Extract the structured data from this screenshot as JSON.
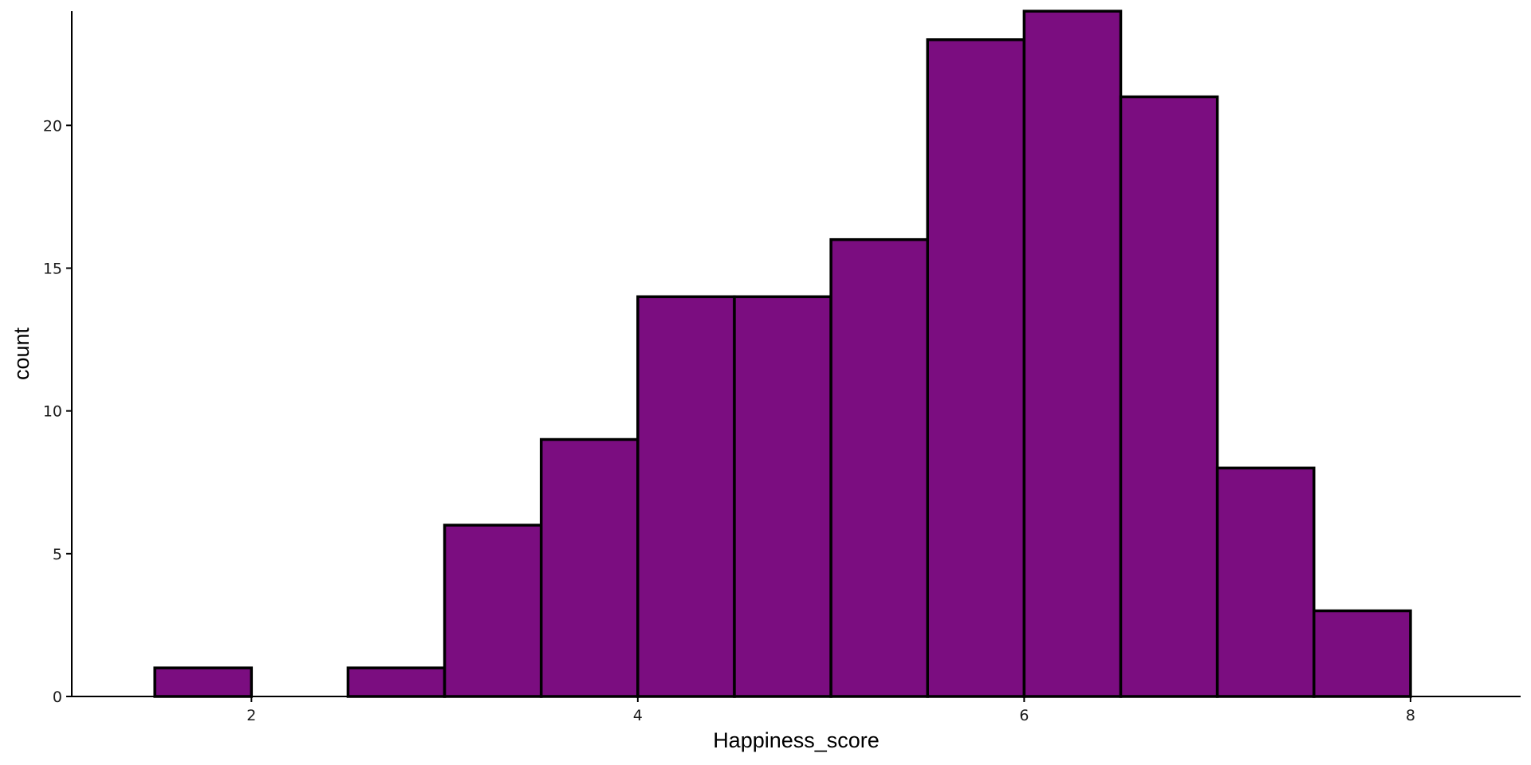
{
  "chart_data": {
    "type": "bar",
    "subtype": "histogram",
    "xlabel": "Happiness_score",
    "ylabel": "count",
    "bin_width": 0.5,
    "bins": [
      {
        "x0": 1.5,
        "x1": 2.0,
        "count": 1
      },
      {
        "x0": 2.0,
        "x1": 2.5,
        "count": 0
      },
      {
        "x0": 2.5,
        "x1": 3.0,
        "count": 1
      },
      {
        "x0": 3.0,
        "x1": 3.5,
        "count": 6
      },
      {
        "x0": 3.5,
        "x1": 4.0,
        "count": 9
      },
      {
        "x0": 4.0,
        "x1": 4.5,
        "count": 14
      },
      {
        "x0": 4.5,
        "x1": 5.0,
        "count": 14
      },
      {
        "x0": 5.0,
        "x1": 5.5,
        "count": 16
      },
      {
        "x0": 5.5,
        "x1": 6.0,
        "count": 23
      },
      {
        "x0": 6.0,
        "x1": 6.5,
        "count": 24
      },
      {
        "x0": 6.5,
        "x1": 7.0,
        "count": 21
      },
      {
        "x0": 7.0,
        "x1": 7.5,
        "count": 8
      },
      {
        "x0": 7.5,
        "x1": 8.0,
        "count": 3
      }
    ],
    "xlim": [
      1.07,
      8.57
    ],
    "ylim": [
      0,
      24
    ],
    "xticks": [
      2,
      4,
      6,
      8
    ],
    "yticks": [
      0,
      5,
      10,
      15,
      20
    ],
    "fill_color": "#7B0D80",
    "edge_color": "#000000",
    "grid": false,
    "legend": false
  }
}
